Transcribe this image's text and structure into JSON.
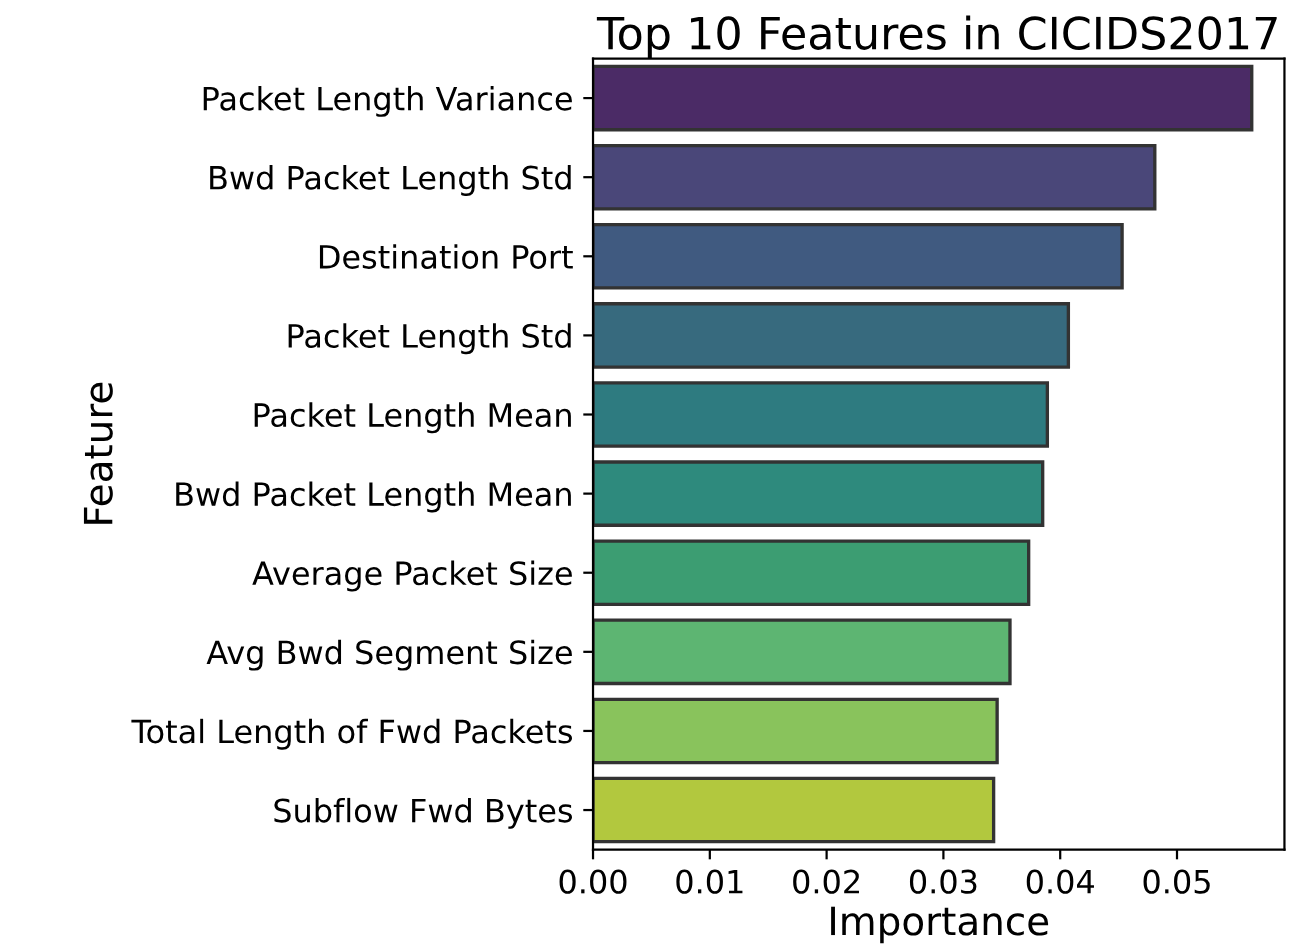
{
  "chart_data": {
    "type": "bar",
    "orientation": "horizontal",
    "title": "Top 10 Features in CICIDS2017",
    "xlabel": "Importance",
    "ylabel": "Feature",
    "categories": [
      "Packet Length Variance",
      "Bwd Packet Length Std",
      "Destination Port",
      "Packet Length Std",
      "Packet Length Mean",
      "Bwd Packet Length Mean",
      "Average Packet Size",
      "Avg Bwd Segment Size",
      "Total Length of Fwd Packets",
      "Subflow Fwd Bytes"
    ],
    "values": [
      0.0564,
      0.0481,
      0.0453,
      0.0407,
      0.0389,
      0.0385,
      0.0373,
      0.0357,
      0.0346,
      0.0343
    ],
    "colors": [
      "#4b2b66",
      "#4a4779",
      "#405a80",
      "#376a7e",
      "#2e7b80",
      "#2e8a7d",
      "#3c9d72",
      "#5db572",
      "#89c35c",
      "#b2c83e"
    ],
    "xlim": [
      0,
      0.0592
    ],
    "xticks": [
      {
        "value": 0,
        "label": "0.00"
      },
      {
        "value": 0.01,
        "label": "0.01"
      },
      {
        "value": 0.02,
        "label": "0.02"
      },
      {
        "value": 0.03,
        "label": "0.03"
      },
      {
        "value": 0.04,
        "label": "0.04"
      },
      {
        "value": 0.05,
        "label": "0.05"
      }
    ],
    "grid": false,
    "legend": false
  }
}
